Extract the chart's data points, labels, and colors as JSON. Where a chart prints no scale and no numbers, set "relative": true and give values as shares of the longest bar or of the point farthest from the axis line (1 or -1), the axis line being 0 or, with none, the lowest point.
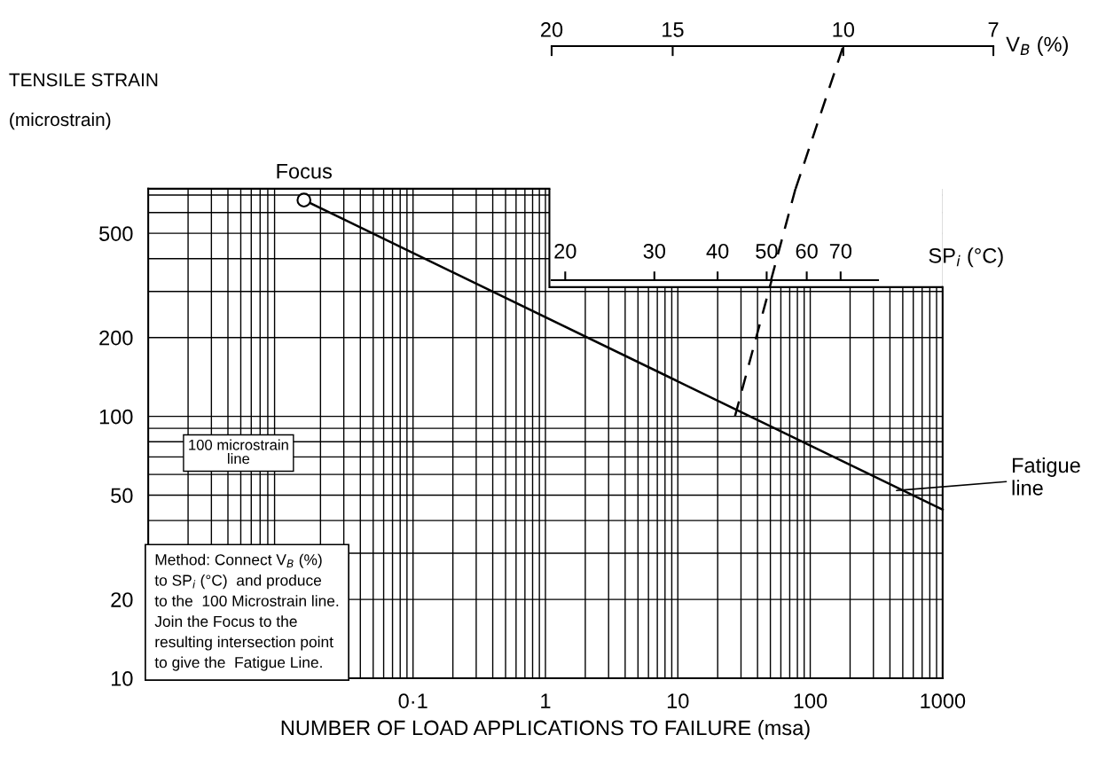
{
  "chart_data": [
    {
      "type": "line",
      "log": "xy",
      "xlim": [
        0.001,
        1000
      ],
      "ylim": [
        10,
        740
      ],
      "xticks": [
        {
          "value": 0.1,
          "label": "0·1"
        },
        1,
        10,
        100,
        1000
      ],
      "yticks": [
        10,
        20,
        50,
        100,
        200,
        500
      ],
      "grid": true,
      "xlabel": "NUMBER OF LOAD APPLICATIONS TO FAILURE (msa)",
      "ylabel": "TENSILE STRAIN\n\n(microstrain)",
      "series": [
        {
          "color": "#000000",
          "line_style": "solid",
          "x": [
            0.015,
            1000
          ],
          "values": [
            670,
            44
          ]
        },
        {
          "color": "#000000",
          "line_style": "dashed",
          "x": [
            27,
            51
          ],
          "values": [
            100,
            330
          ]
        },
        {
          "type": "scatter",
          "color": "#000000",
          "marker": "circle",
          "x": [
            0.015
          ],
          "values": [
            670
          ]
        }
      ],
      "annotations": [
        {
          "text": "Focus",
          "x": 0.015,
          "y": 670
        },
        {
          "text": "Fatigue\nline",
          "x": 430,
          "y": 52
        },
        "100 microstrain\nline",
        "Method: Connect V$_{B}$ (%)\nto SP$_{i}$ (°C)  and produce\nto the  100 Microstrain line.\nJoin the Focus to the\nresulting intersection point\nto give the  Fatigue Line."
      ]
    },
    {
      "type": "line",
      "relative": true,
      "log": "x",
      "xlim": [
        20,
        7
      ],
      "xticks": [
        20,
        15,
        10,
        7
      ],
      "xlabel": "V$_{B}$ (%)",
      "tick_labels": "x",
      "series": [
        {
          "color": "#000000",
          "line_style": "dashed",
          "x": [
            11.2,
            10
          ],
          "values": [
            0,
            1
          ]
        }
      ]
    },
    {
      "type": "line",
      "relative": true,
      "log": "x",
      "xlim": [
        18.8,
        83
      ],
      "xticks": [
        20,
        30,
        40,
        50,
        60,
        70
      ],
      "xlabel": "SP$_{i}$ (°C)",
      "tick_labels": "x",
      "series": [
        {
          "color": "#000000",
          "line_style": "dashed",
          "x": [
            51,
            57
          ],
          "values": [
            0,
            1
          ]
        }
      ]
    }
  ]
}
